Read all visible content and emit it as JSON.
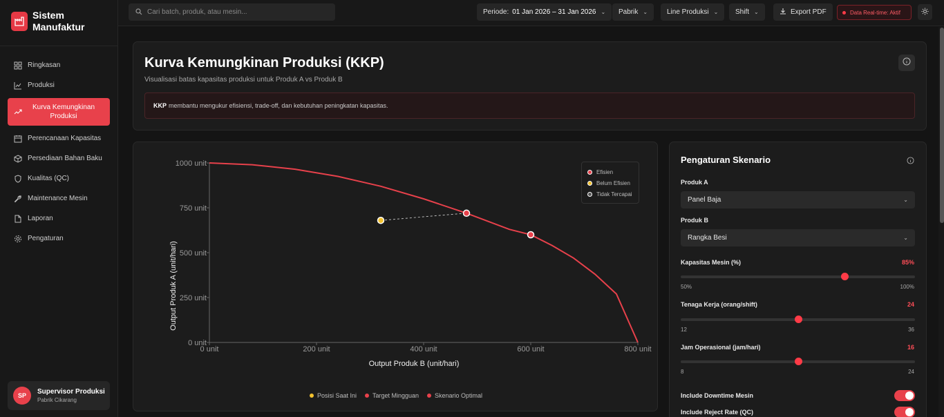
{
  "app": {
    "title_line1": "Sistem",
    "title_line2": "Manufaktur"
  },
  "sidebar": {
    "items": [
      {
        "label": "Ringkasan",
        "icon": "grid-icon"
      },
      {
        "label": "Produksi",
        "icon": "chart-icon"
      },
      {
        "label": "Kurva Kemungkinan Produksi",
        "icon": "trend-icon",
        "active": true
      },
      {
        "label": "Perencanaan Kapasitas",
        "icon": "calendar-icon"
      },
      {
        "label": "Persediaan Bahan Baku",
        "icon": "box-icon"
      },
      {
        "label": "Kualitas (QC)",
        "icon": "shield-icon"
      },
      {
        "label": "Maintenance Mesin",
        "icon": "wrench-icon"
      },
      {
        "label": "Laporan",
        "icon": "file-icon"
      },
      {
        "label": "Pengaturan",
        "icon": "gear-icon"
      }
    ],
    "user": {
      "initials": "SP",
      "name": "Supervisor Produksi",
      "subtitle": "Pabrik Cikarang"
    }
  },
  "topbar": {
    "search_placeholder": "Cari batch, produk, atau mesin...",
    "periode_label": "Periode:",
    "periode_value": "01 Jan 2026 – 31 Jan 2026",
    "pabrik": "Pabrik",
    "line": "Line Produksi",
    "shift": "Shift",
    "export": "Export PDF",
    "live": "Data Real-time: Aktif"
  },
  "header": {
    "title": "Kurva Kemungkinan Produksi (KKP)",
    "subtitle": "Visualisasi batas kapasitas produksi untuk Produk A vs Produk B",
    "note_bold": "KKP",
    "note_text": "membantu mengukur efisiensi, trade-off, dan kebutuhan peningkatan kapasitas."
  },
  "chart_data": {
    "type": "line",
    "xlabel": "Output Produk B (unit/hari)",
    "ylabel": "Output Produk A (unit/hari)",
    "xlim": [
      0,
      800
    ],
    "ylim": [
      0,
      1000
    ],
    "x_ticks": [
      "0 unit",
      "200 unit",
      "400 unit",
      "600 unit",
      "800 unit"
    ],
    "y_ticks": [
      "0 unit",
      "250 unit",
      "500 unit",
      "750 unit",
      "1000 unit"
    ],
    "frontier": {
      "x": [
        0,
        80,
        160,
        240,
        320,
        400,
        480,
        560,
        600,
        640,
        680,
        720,
        760,
        800
      ],
      "y": [
        1000,
        990,
        965,
        925,
        870,
        800,
        720,
        630,
        600,
        540,
        470,
        380,
        270,
        0
      ]
    },
    "points": [
      {
        "name": "Posisi Saat Ini",
        "x": 320,
        "y": 680,
        "color": "#f2c12e"
      },
      {
        "name": "Target Mingguan",
        "x": 480,
        "y": 720,
        "color": "#e8414b"
      },
      {
        "name": "Skenario Optimal",
        "x": 600,
        "y": 600,
        "color": "#e8414b"
      }
    ],
    "legend_status": [
      {
        "label": "Efisien",
        "color": "#e8414b"
      },
      {
        "label": "Belum Efisien",
        "color": "#f2c12e"
      },
      {
        "label": "Tidak Tercapai",
        "color": "#555555"
      }
    ],
    "legend_points": [
      {
        "label": "Posisi Saat Ini",
        "color": "#f2c12e"
      },
      {
        "label": "Target Mingguan",
        "color": "#e8414b"
      },
      {
        "label": "Skenario Optimal",
        "color": "#e8414b"
      }
    ]
  },
  "settings": {
    "title": "Pengaturan Skenario",
    "produk_a_label": "Produk A",
    "produk_a_value": "Panel Baja",
    "produk_b_label": "Produk B",
    "produk_b_value": "Rangka Besi",
    "kapasitas_label": "Kapasitas Mesin (%)",
    "kapasitas_value": "85%",
    "kapasitas_min": "50%",
    "kapasitas_max": "100%",
    "kapasitas_level": 0.7,
    "tenaga_label": "Tenaga Kerja (orang/shift)",
    "tenaga_value": "24",
    "tenaga_min": "12",
    "tenaga_max": "36",
    "tenaga_level": 0.5,
    "jam_label": "Jam Operasional (jam/hari)",
    "jam_value": "16",
    "jam_min": "8",
    "jam_max": "24",
    "jam_level": 0.5,
    "toggle_downtime": "Include Downtime Mesin",
    "toggle_reject": "Include Reject Rate (QC)"
  }
}
